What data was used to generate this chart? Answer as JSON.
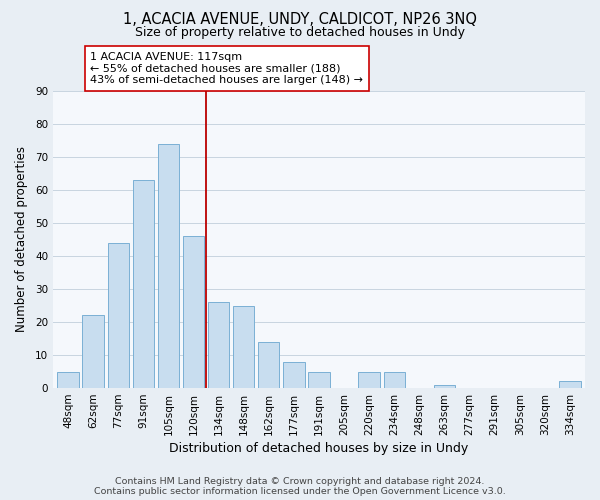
{
  "title": "1, ACACIA AVENUE, UNDY, CALDICOT, NP26 3NQ",
  "subtitle": "Size of property relative to detached houses in Undy",
  "xlabel": "Distribution of detached houses by size in Undy",
  "ylabel": "Number of detached properties",
  "bar_labels": [
    "48sqm",
    "62sqm",
    "77sqm",
    "91sqm",
    "105sqm",
    "120sqm",
    "134sqm",
    "148sqm",
    "162sqm",
    "177sqm",
    "191sqm",
    "205sqm",
    "220sqm",
    "234sqm",
    "248sqm",
    "263sqm",
    "277sqm",
    "291sqm",
    "305sqm",
    "320sqm",
    "334sqm"
  ],
  "bar_values": [
    5,
    22,
    44,
    63,
    74,
    46,
    26,
    25,
    14,
    8,
    5,
    0,
    5,
    5,
    0,
    1,
    0,
    0,
    0,
    0,
    2
  ],
  "bar_color": "#c8ddef",
  "bar_edge_color": "#7ab0d4",
  "vline_x": 5.5,
  "vline_color": "#bb0000",
  "annotation_text": "1 ACACIA AVENUE: 117sqm\n← 55% of detached houses are smaller (188)\n43% of semi-detached houses are larger (148) →",
  "ylim": [
    0,
    90
  ],
  "yticks": [
    0,
    10,
    20,
    30,
    40,
    50,
    60,
    70,
    80,
    90
  ],
  "background_color": "#e8eef4",
  "plot_background": "#f5f8fc",
  "grid_color": "#c8d4e0",
  "footer": "Contains HM Land Registry data © Crown copyright and database right 2024.\nContains public sector information licensed under the Open Government Licence v3.0.",
  "title_fontsize": 10.5,
  "subtitle_fontsize": 9,
  "xlabel_fontsize": 9,
  "ylabel_fontsize": 8.5,
  "annotation_fontsize": 8,
  "footer_fontsize": 6.8,
  "tick_fontsize": 7.5
}
